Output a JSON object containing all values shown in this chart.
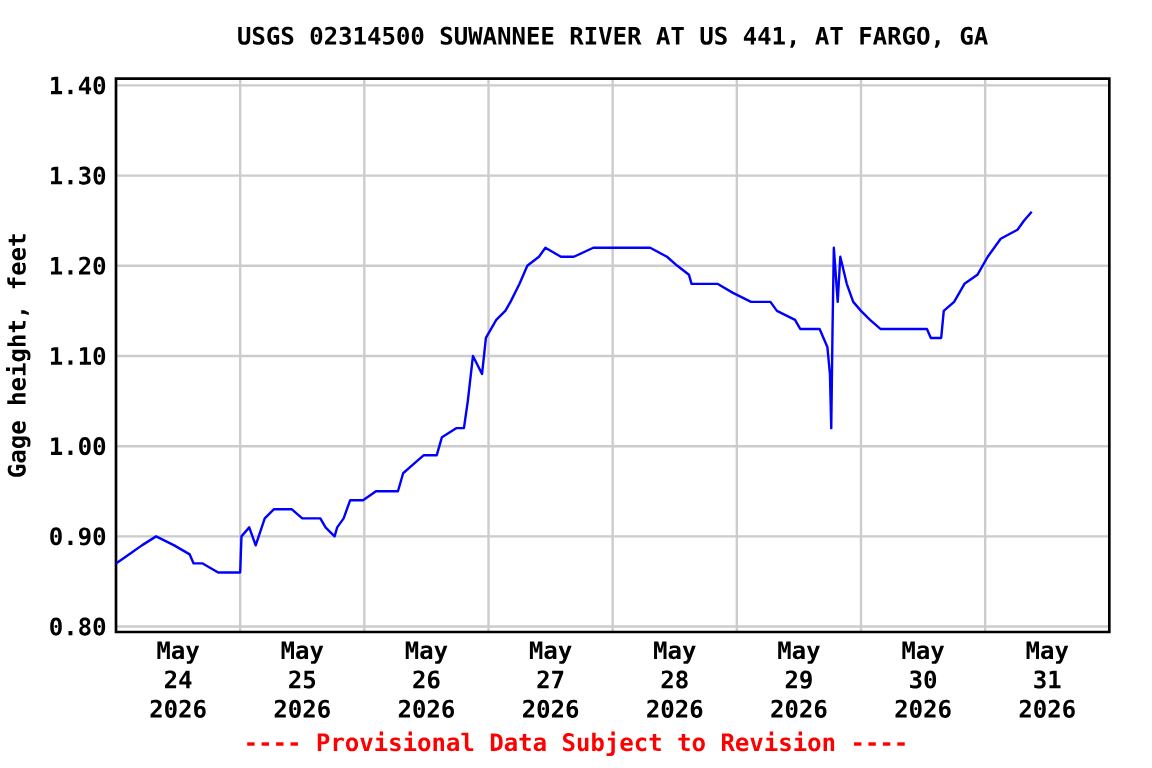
{
  "chart_data": {
    "type": "line",
    "title": "USGS 02314500 SUWANNEE RIVER AT US 441, AT FARGO, GA",
    "ylabel": "Gage height, feet",
    "annotations": [
      "---- Provisional Data Subject to Revision ----"
    ],
    "grid": true,
    "marker": "none",
    "line_style": "solid",
    "xlim": [
      "2026-05-24T00:00",
      "2026-06-01T00:00"
    ],
    "ylim": [
      0.794,
      1.4075
    ],
    "yticks": [
      {
        "value": 0.8,
        "label": "0.80"
      },
      {
        "value": 0.9,
        "label": "0.90"
      },
      {
        "value": 1.0,
        "label": "1.00"
      },
      {
        "value": 1.1,
        "label": "1.10"
      },
      {
        "value": 1.2,
        "label": "1.20"
      },
      {
        "value": 1.3,
        "label": "1.30"
      },
      {
        "value": 1.4,
        "label": "1.40"
      }
    ],
    "xticks": [
      {
        "value": "2026-05-25T00:00",
        "label": null
      },
      {
        "value": "2026-05-26T00:00",
        "label": null
      },
      {
        "value": "2026-05-27T00:00",
        "label": null
      },
      {
        "value": "2026-05-28T00:00",
        "label": null
      },
      {
        "value": "2026-05-29T00:00",
        "label": null
      },
      {
        "value": "2026-05-30T00:00",
        "label": null
      },
      {
        "value": "2026-05-31T00:00",
        "label": null
      },
      {
        "value": "2026-05-24T12:00",
        "label": "May 24 2026"
      },
      {
        "value": "2026-05-25T12:00",
        "label": "May 25 2026"
      },
      {
        "value": "2026-05-26T12:00",
        "label": "May 26 2026"
      },
      {
        "value": "2026-05-27T12:00",
        "label": "May 27 2026"
      },
      {
        "value": "2026-05-28T12:00",
        "label": "May 28 2026"
      },
      {
        "value": "2026-05-29T12:00",
        "label": "May 29 2026"
      },
      {
        "value": "2026-05-30T12:00",
        "label": "May 30 2026"
      },
      {
        "value": "2026-05-31T12:00",
        "label": "May 31 2026"
      }
    ],
    "series": [
      {
        "color": "#0000ff",
        "x": [
          "2026-05-24T00:00",
          "2026-05-24T02:30",
          "2026-05-24T05:00",
          "2026-05-24T07:45",
          "2026-05-24T11:15",
          "2026-05-24T14:15",
          "2026-05-24T15:00",
          "2026-05-24T16:45",
          "2026-05-24T19:45",
          "2026-05-25T00:00",
          "2026-05-25T00:15",
          "2026-05-25T01:45",
          "2026-05-25T03:00",
          "2026-05-25T04:45",
          "2026-05-25T06:30",
          "2026-05-25T10:00",
          "2026-05-25T12:00",
          "2026-05-25T15:30",
          "2026-05-25T16:30",
          "2026-05-25T18:15",
          "2026-05-25T18:45",
          "2026-05-25T20:00",
          "2026-05-25T21:15",
          "2026-05-25T23:45",
          "2026-05-26T02:15",
          "2026-05-26T06:30",
          "2026-05-26T07:30",
          "2026-05-26T09:30",
          "2026-05-26T11:30",
          "2026-05-26T14:00",
          "2026-05-26T15:00",
          "2026-05-26T17:45",
          "2026-05-26T19:15",
          "2026-05-26T20:00",
          "2026-05-26T21:00",
          "2026-05-26T22:45",
          "2026-05-26T23:30",
          "2026-05-27T00:30",
          "2026-05-27T01:30",
          "2026-05-27T03:15",
          "2026-05-27T04:15",
          "2026-05-27T06:00",
          "2026-05-27T07:30",
          "2026-05-27T09:45",
          "2026-05-27T11:00",
          "2026-05-27T14:00",
          "2026-05-27T16:30",
          "2026-05-27T20:15",
          "2026-05-28T02:30",
          "2026-05-28T07:15",
          "2026-05-28T10:30",
          "2026-05-28T12:30",
          "2026-05-28T14:45",
          "2026-05-28T15:15",
          "2026-05-28T20:15",
          "2026-05-28T23:15",
          "2026-05-29T02:45",
          "2026-05-29T06:30",
          "2026-05-29T07:45",
          "2026-05-29T11:15",
          "2026-05-29T12:15",
          "2026-05-29T16:00",
          "2026-05-29T16:45",
          "2026-05-29T17:30",
          "2026-05-29T18:00",
          "2026-05-29T18:15",
          "2026-05-29T18:30",
          "2026-05-29T18:45",
          "2026-05-29T19:30",
          "2026-05-29T20:00",
          "2026-05-29T21:15",
          "2026-05-29T22:30",
          "2026-05-30T00:00",
          "2026-05-30T01:45",
          "2026-05-30T03:45",
          "2026-05-30T09:00",
          "2026-05-30T12:45",
          "2026-05-30T13:30",
          "2026-05-30T15:30",
          "2026-05-30T16:00",
          "2026-05-30T18:00",
          "2026-05-30T20:00",
          "2026-05-30T22:30",
          "2026-05-31T00:30",
          "2026-05-31T03:00",
          "2026-05-31T06:15",
          "2026-05-31T07:30",
          "2026-05-31T09:00"
        ],
        "values": [
          0.87,
          0.88,
          0.89,
          0.9,
          0.89,
          0.88,
          0.87,
          0.87,
          0.86,
          0.86,
          0.9,
          0.91,
          0.89,
          0.92,
          0.93,
          0.93,
          0.92,
          0.92,
          0.91,
          0.9,
          0.91,
          0.92,
          0.94,
          0.94,
          0.95,
          0.95,
          0.97,
          0.98,
          0.99,
          0.99,
          1.01,
          1.02,
          1.02,
          1.05,
          1.1,
          1.08,
          1.12,
          1.13,
          1.14,
          1.15,
          1.16,
          1.18,
          1.2,
          1.21,
          1.22,
          1.21,
          1.21,
          1.22,
          1.22,
          1.22,
          1.21,
          1.2,
          1.19,
          1.18,
          1.18,
          1.17,
          1.16,
          1.16,
          1.15,
          1.14,
          1.13,
          1.13,
          1.12,
          1.11,
          1.08,
          1.02,
          1.13,
          1.22,
          1.16,
          1.21,
          1.18,
          1.16,
          1.15,
          1.14,
          1.13,
          1.13,
          1.13,
          1.12,
          1.12,
          1.15,
          1.16,
          1.18,
          1.19,
          1.21,
          1.23,
          1.24,
          1.25,
          1.26
        ]
      }
    ]
  }
}
